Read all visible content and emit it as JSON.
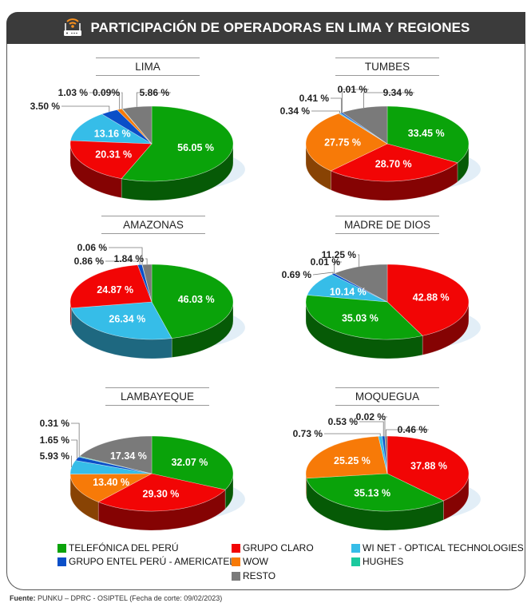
{
  "header": {
    "title": "PARTICIPACIÓN DE OPERADORAS EN LIMA Y REGIONES",
    "icon": "wifi-router-icon"
  },
  "operators": {
    "telefonica": {
      "name": "TELEFÓNICA DEL PERÚ",
      "color": "#0aa30a"
    },
    "claro": {
      "name": "GRUPO CLARO",
      "color": "#f20505"
    },
    "winet": {
      "name": "WI NET - OPTICAL TECHNOLOGIES",
      "color": "#36bde8"
    },
    "entel": {
      "name": "GRUPO ENTEL PERÚ - AMERICATEL",
      "color": "#0a4fc8"
    },
    "wow": {
      "name": "WOW",
      "color": "#f77a08"
    },
    "hughes": {
      "name": "HUGHES",
      "color": "#1bc99e"
    },
    "resto": {
      "name": "RESTO",
      "color": "#7a7a7a"
    }
  },
  "legend_order": [
    "telefonica",
    "claro",
    "winet",
    "entel",
    "wow",
    "hughes",
    "resto"
  ],
  "chart_data": [
    {
      "type": "pie",
      "title": "LIMA",
      "slices": [
        {
          "op": "telefonica",
          "value": 56.05,
          "label": "56.05 %"
        },
        {
          "op": "claro",
          "value": 20.31,
          "label": "20.31 %"
        },
        {
          "op": "winet",
          "value": 13.16,
          "label": "13.16 %"
        },
        {
          "op": "entel",
          "value": 3.5,
          "label": "3.50 %"
        },
        {
          "op": "wow",
          "value": 1.03,
          "label": "1.03 %"
        },
        {
          "op": "hughes",
          "value": 0.09,
          "label": "0.09%"
        },
        {
          "op": "resto",
          "value": 5.86,
          "label": "5.86 %"
        }
      ]
    },
    {
      "type": "pie",
      "title": "TUMBES",
      "slices": [
        {
          "op": "telefonica",
          "value": 33.45,
          "label": "33.45 %"
        },
        {
          "op": "claro",
          "value": 28.7,
          "label": "28.70 %"
        },
        {
          "op": "wow",
          "value": 27.75,
          "label": "27.75 %"
        },
        {
          "op": "winet",
          "value": 0.34,
          "label": "0.34 %"
        },
        {
          "op": "entel",
          "value": 0.41,
          "label": "0.41 %"
        },
        {
          "op": "hughes",
          "value": 0.01,
          "label": "0.01 %"
        },
        {
          "op": "resto",
          "value": 9.34,
          "label": "9.34 %"
        }
      ]
    },
    {
      "type": "pie",
      "title": "AMAZONAS",
      "slices": [
        {
          "op": "telefonica",
          "value": 46.03,
          "label": "46.03 %"
        },
        {
          "op": "winet",
          "value": 26.34,
          "label": "26.34 %"
        },
        {
          "op": "claro",
          "value": 24.87,
          "label": "24.87 %"
        },
        {
          "op": "entel",
          "value": 0.86,
          "label": "0.86 %"
        },
        {
          "op": "hughes",
          "value": 0.06,
          "label": "0.06 %"
        },
        {
          "op": "resto",
          "value": 1.84,
          "label": "1.84 %"
        }
      ]
    },
    {
      "type": "pie",
      "title": "MADRE DE DIOS",
      "slices": [
        {
          "op": "claro",
          "value": 42.88,
          "label": "42.88 %"
        },
        {
          "op": "telefonica",
          "value": 35.03,
          "label": "35.03 %"
        },
        {
          "op": "winet",
          "value": 10.14,
          "label": "10.14 %"
        },
        {
          "op": "entel",
          "value": 0.69,
          "label": "0.69 %"
        },
        {
          "op": "hughes",
          "value": 0.01,
          "label": "0.01 %"
        },
        {
          "op": "resto",
          "value": 11.25,
          "label": "11.25 %"
        }
      ]
    },
    {
      "type": "pie",
      "title": "LAMBAYEQUE",
      "slices": [
        {
          "op": "telefonica",
          "value": 32.07,
          "label": "32.07 %"
        },
        {
          "op": "claro",
          "value": 29.3,
          "label": "29.30 %"
        },
        {
          "op": "wow",
          "value": 13.4,
          "label": "13.40 %"
        },
        {
          "op": "winet",
          "value": 5.93,
          "label": "5.93 %"
        },
        {
          "op": "entel",
          "value": 1.65,
          "label": "1.65 %"
        },
        {
          "op": "hughes",
          "value": 0.31,
          "label": "0.31 %"
        },
        {
          "op": "resto",
          "value": 17.34,
          "label": "17.34 %"
        }
      ]
    },
    {
      "type": "pie",
      "title": "MOQUEGUA",
      "slices": [
        {
          "op": "claro",
          "value": 37.88,
          "label": "37.88 %"
        },
        {
          "op": "telefonica",
          "value": 35.13,
          "label": "35.13 %"
        },
        {
          "op": "wow",
          "value": 25.25,
          "label": "25.25 %"
        },
        {
          "op": "winet",
          "value": 0.73,
          "label": "0.73 %"
        },
        {
          "op": "entel",
          "value": 0.53,
          "label": "0.53 %"
        },
        {
          "op": "hughes",
          "value": 0.02,
          "label": "0.02 %"
        },
        {
          "op": "resto",
          "value": 0.46,
          "label": "0.46 %"
        }
      ]
    }
  ],
  "footer": {
    "label": "Fuente:",
    "text": " PUNKU – DPRC - OSIPTEL (Fecha de corte: 09/02/2023)"
  }
}
